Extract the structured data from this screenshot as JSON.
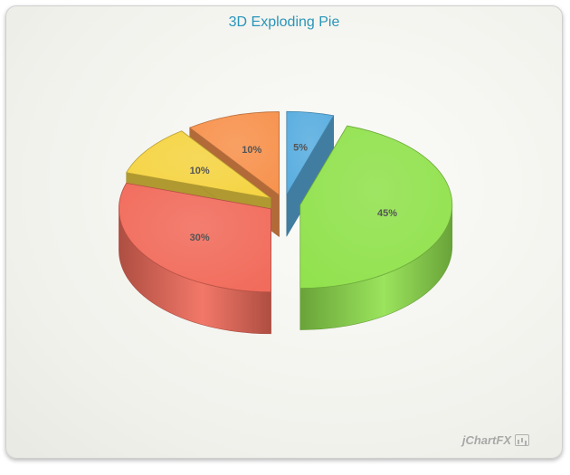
{
  "chart_data": {
    "type": "pie",
    "title": "3D Exploding Pie",
    "slices": [
      {
        "value": 5,
        "label": "5%",
        "color": "#5aaee0",
        "exploded": true
      },
      {
        "value": 45,
        "label": "45%",
        "color": "#92e24f",
        "exploded": true
      },
      {
        "value": 30,
        "label": "30%",
        "color": "#f16c5c",
        "exploded": true
      },
      {
        "value": 10,
        "label": "10%",
        "color": "#f5d443",
        "exploded": true
      },
      {
        "value": 10,
        "label": "10%",
        "color": "#f7934f",
        "exploded": true
      }
    ],
    "legend": "none",
    "style": "3d"
  },
  "branding": {
    "logo_text": "jChartFX"
  }
}
